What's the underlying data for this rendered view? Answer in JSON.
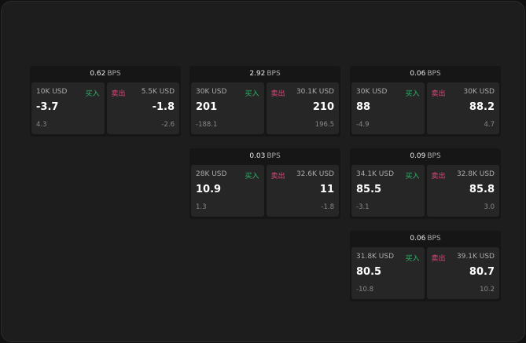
{
  "widgets": [
    {
      "bps": "0.62",
      "unit": "BPS",
      "bid": {
        "qty": "10K USD",
        "label": "买入",
        "price": "-3.7",
        "change": "4.3"
      },
      "ask": {
        "qty": "5.5K USD",
        "label": "卖出",
        "price": "-1.8",
        "change": "-2.6"
      }
    },
    {
      "bps": "2.92",
      "unit": "BPS",
      "bid": {
        "qty": "30K USD",
        "label": "买入",
        "price": "201",
        "change": "-188.1"
      },
      "ask": {
        "qty": "30.1K USD",
        "label": "卖出",
        "price": "210",
        "change": "196.5"
      }
    },
    {
      "bps": "0.06",
      "unit": "BPS",
      "bid": {
        "qty": "30K USD",
        "label": "买入",
        "price": "88",
        "change": "-4.9"
      },
      "ask": {
        "qty": "30K USD",
        "label": "卖出",
        "price": "88.2",
        "change": "4.7"
      }
    },
    {
      "bps": "0.03",
      "unit": "BPS",
      "bid": {
        "qty": "28K USD",
        "label": "买入",
        "price": "10.9",
        "change": "1.3"
      },
      "ask": {
        "qty": "32.6K USD",
        "label": "卖出",
        "price": "11",
        "change": "-1.8"
      }
    },
    {
      "bps": "0.09",
      "unit": "BPS",
      "bid": {
        "qty": "34.1K USD",
        "label": "买入",
        "price": "85.5",
        "change": "-3.1"
      },
      "ask": {
        "qty": "32.8K USD",
        "label": "卖出",
        "price": "85.8",
        "change": "3.0"
      }
    },
    {
      "bps": "0.06",
      "unit": "BPS",
      "bid": {
        "qty": "31.8K USD",
        "label": "买入",
        "price": "80.5",
        "change": "-10.8"
      },
      "ask": {
        "qty": "39.1K USD",
        "label": "卖出",
        "price": "80.7",
        "change": "10.2"
      }
    }
  ],
  "colors": {
    "buy": "#2fb36a",
    "sell": "#e0457b"
  }
}
